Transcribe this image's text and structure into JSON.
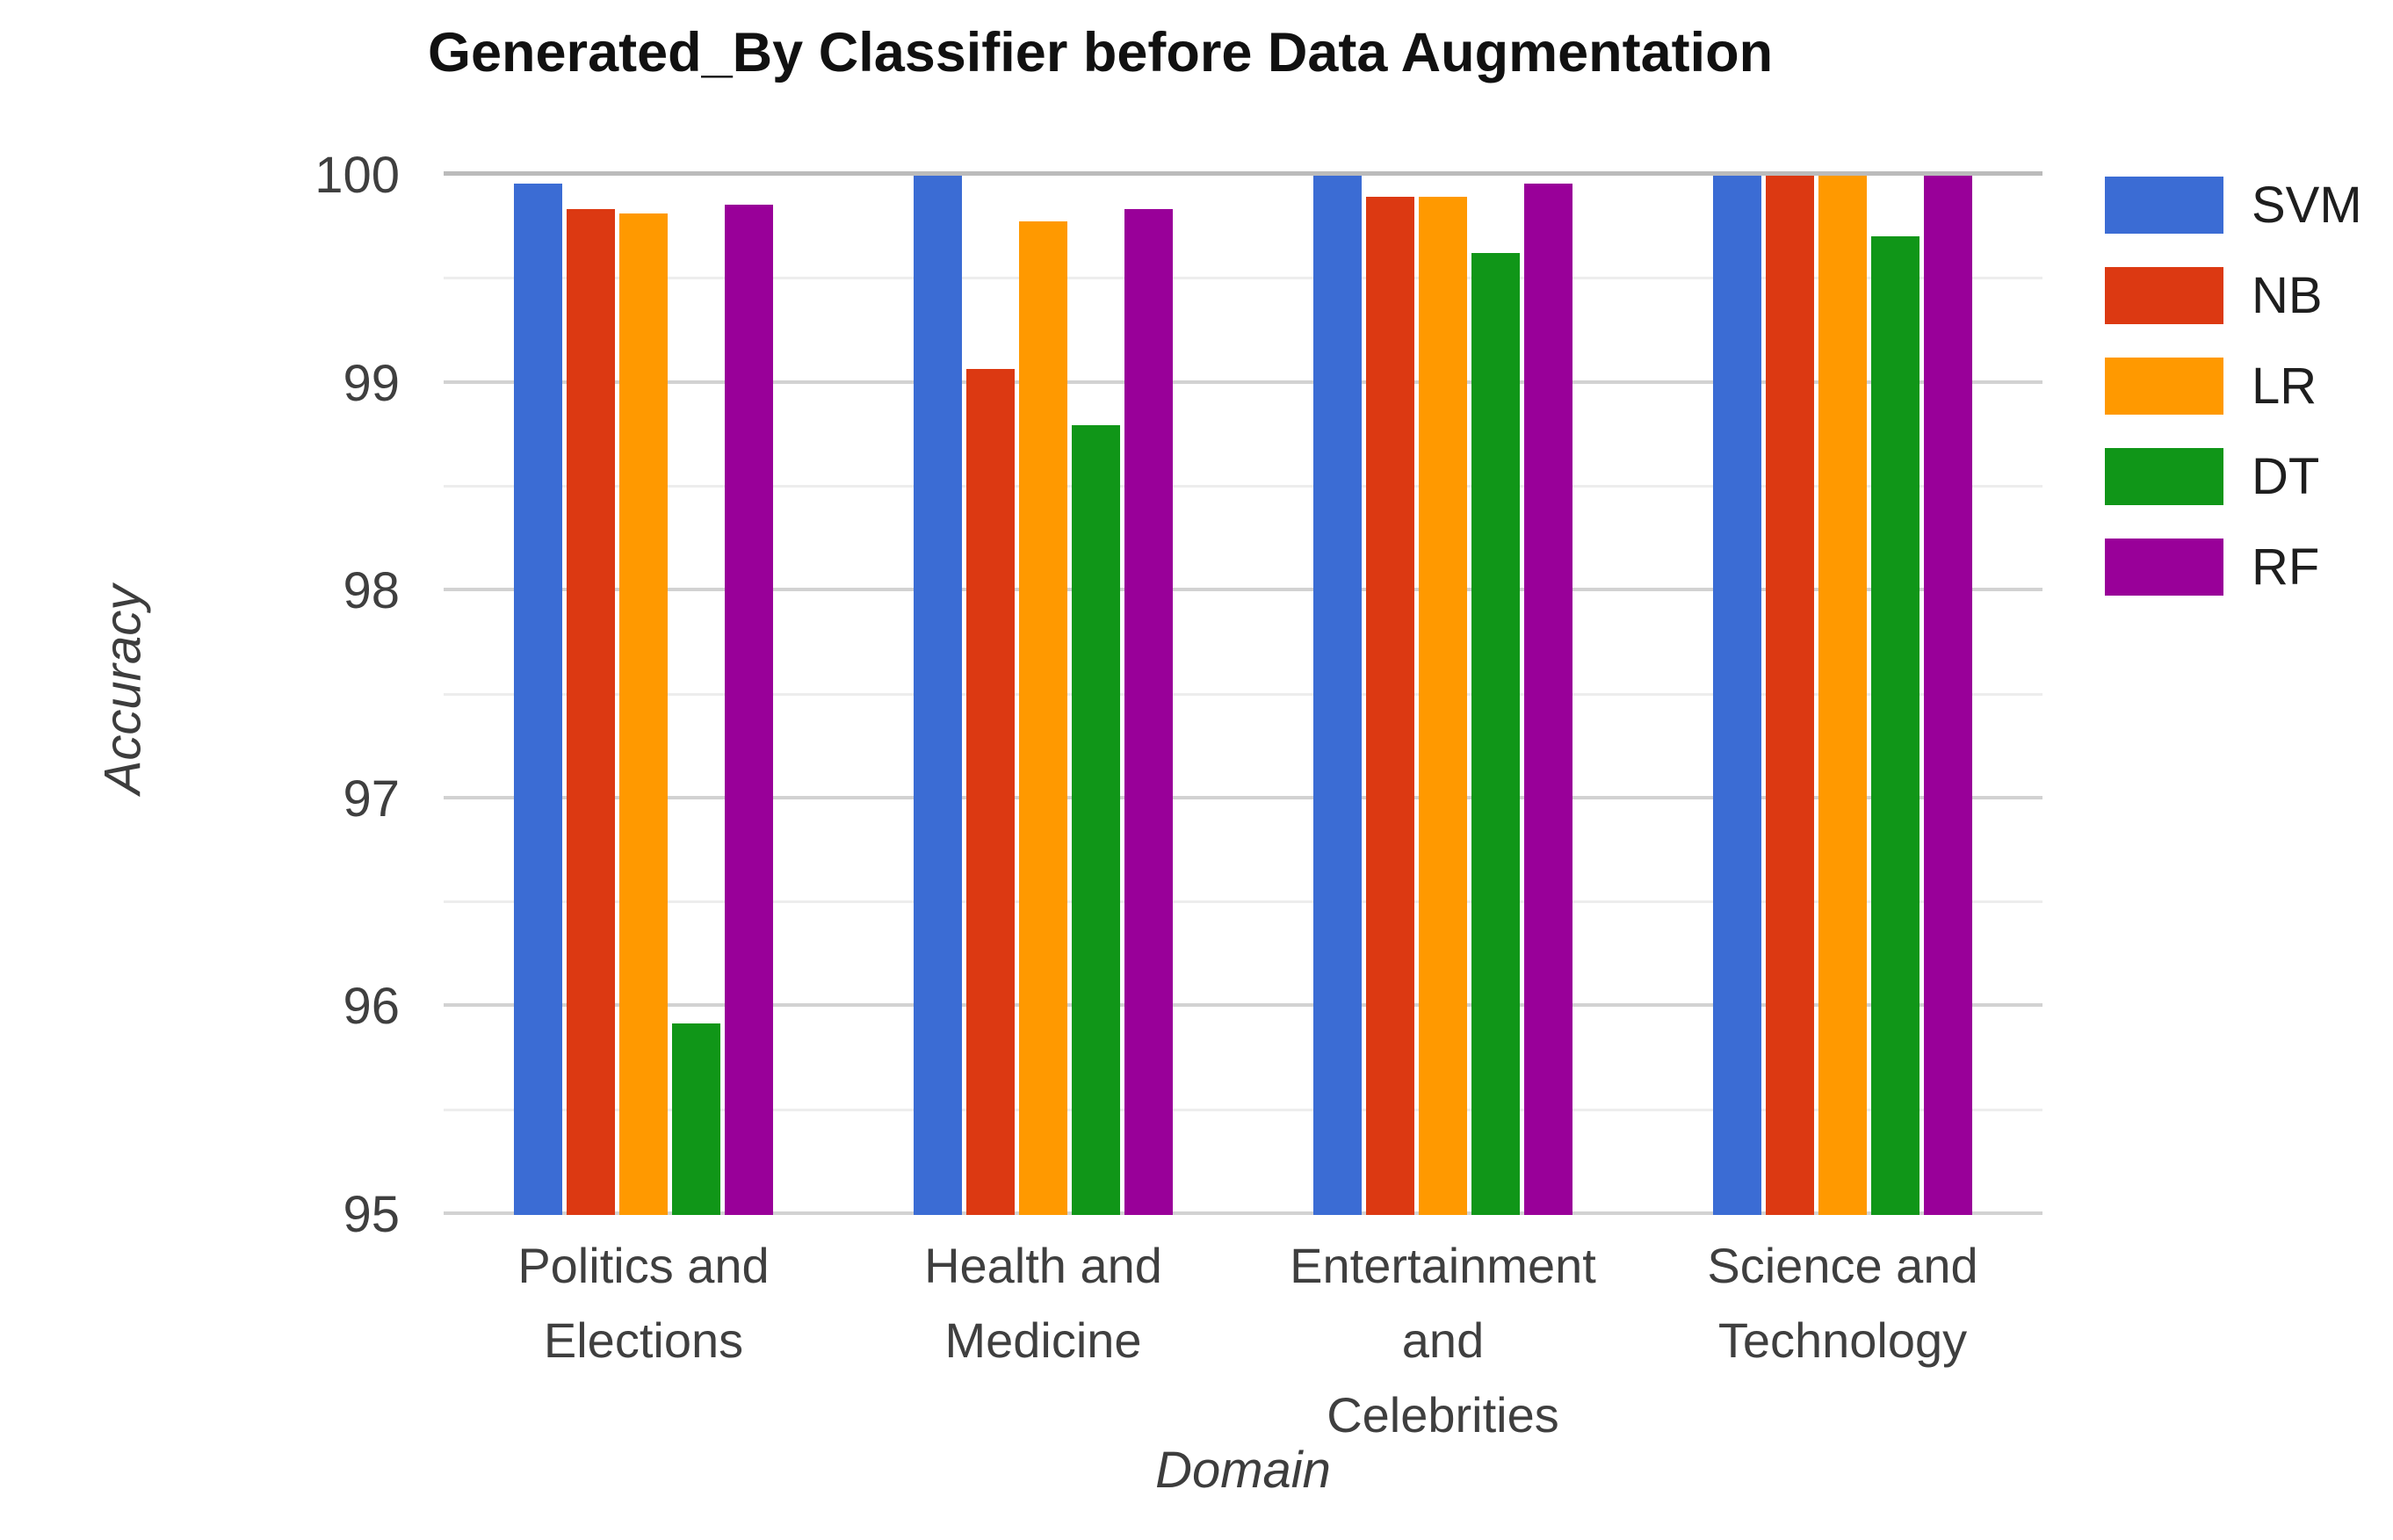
{
  "chart_data": {
    "type": "bar",
    "title": "Generated_By Classifier before Data Augmentation",
    "xlabel": "Domain",
    "ylabel": "Accuracy",
    "ylim": [
      95,
      100
    ],
    "y_major_ticks": [
      100,
      99,
      98,
      97,
      96,
      95
    ],
    "y_minor_ticks": [
      99.5,
      98.5,
      97.5,
      96.5,
      95.5
    ],
    "grid": true,
    "legend_position": "right",
    "background_color": "#ffffff",
    "categories": [
      "Politics and Elections",
      "Health and Medicine",
      "Entertainment and Celebrities",
      "Science and Technology"
    ],
    "category_label_lines": [
      [
        "Politics and",
        "Elections"
      ],
      [
        "Health and",
        "Medicine"
      ],
      [
        "Entertainment",
        "and",
        "Celebrities"
      ],
      [
        "Science and",
        "Technology"
      ]
    ],
    "series": [
      {
        "name": "SVM",
        "color": "#3B6CD4",
        "values": [
          99.96,
          100.0,
          100.0,
          100.0
        ]
      },
      {
        "name": "NB",
        "color": "#DC3912",
        "values": [
          99.84,
          99.07,
          99.9,
          100.0
        ]
      },
      {
        "name": "LR",
        "color": "#FF9900",
        "values": [
          99.82,
          99.78,
          99.9,
          100.0
        ]
      },
      {
        "name": "DT",
        "color": "#109618",
        "values": [
          95.92,
          98.8,
          99.63,
          99.71
        ]
      },
      {
        "name": "RF",
        "color": "#990099",
        "values": [
          99.86,
          99.84,
          99.96,
          100.0
        ]
      }
    ]
  }
}
